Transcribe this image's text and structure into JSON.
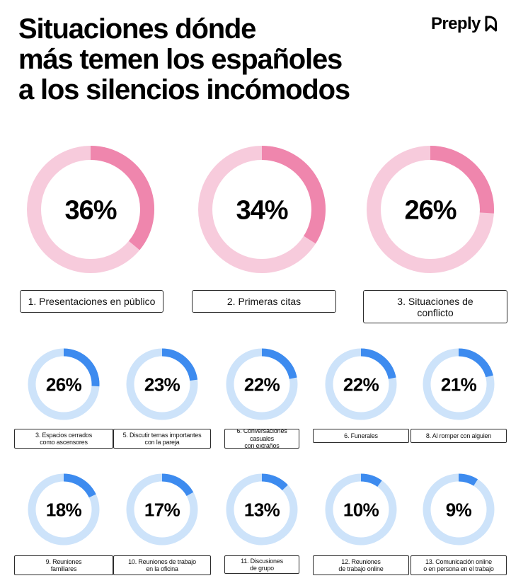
{
  "title": {
    "lines": [
      "Situaciones dónde",
      "más temen los españoles",
      "a los silencios incómodos"
    ]
  },
  "brand": {
    "name": "Preply",
    "icon": "preply-logo-icon"
  },
  "colors": {
    "top_fill": "#ef86ad",
    "top_track": "#f7cbdc",
    "bottom_fill": "#3d8bef",
    "bottom_track": "#cde3fa",
    "label_border": "#2b2b2b"
  },
  "chart_data": {
    "type": "donut",
    "unit": "%",
    "items": [
      {
        "rank": 1,
        "label": "1. Presentaciones en público",
        "value": 36,
        "value_label": "36%"
      },
      {
        "rank": 2,
        "label": "2. Primeras citas",
        "value": 34,
        "value_label": "34%"
      },
      {
        "rank": 3,
        "label": "3. Situaciones de\nconflicto",
        "value": 26,
        "value_label": "26%"
      },
      {
        "rank": 4,
        "label": "3. Espacios cerrados\ncomo ascensores",
        "value": 26,
        "value_label": "26%"
      },
      {
        "rank": 5,
        "label": "5. Discutir temas importantes\ncon la pareja",
        "value": 23,
        "value_label": "23%"
      },
      {
        "rank": 6,
        "label": "6. Conversaciones casuales\ncon extraños",
        "value": 22,
        "value_label": "22%"
      },
      {
        "rank": 7,
        "label": "6. Funerales",
        "value": 22,
        "value_label": "22%"
      },
      {
        "rank": 8,
        "label": "8. Al romper con alguien",
        "value": 21,
        "value_label": "21%"
      },
      {
        "rank": 9,
        "label": "9. Reuniones\nfamiliares",
        "value": 18,
        "value_label": "18%"
      },
      {
        "rank": 10,
        "label": "10. Reuniones de trabajo\nen la oficina",
        "value": 17,
        "value_label": "17%"
      },
      {
        "rank": 11,
        "label": "11. Discusiones\nde grupo",
        "value": 13,
        "value_label": "13%"
      },
      {
        "rank": 12,
        "label": "12. Reuniones\nde trabajo online",
        "value": 10,
        "value_label": "10%"
      },
      {
        "rank": 13,
        "label": "13. Comunicación online\no en persona en el trabajo",
        "value": 9,
        "value_label": "9%"
      }
    ]
  }
}
